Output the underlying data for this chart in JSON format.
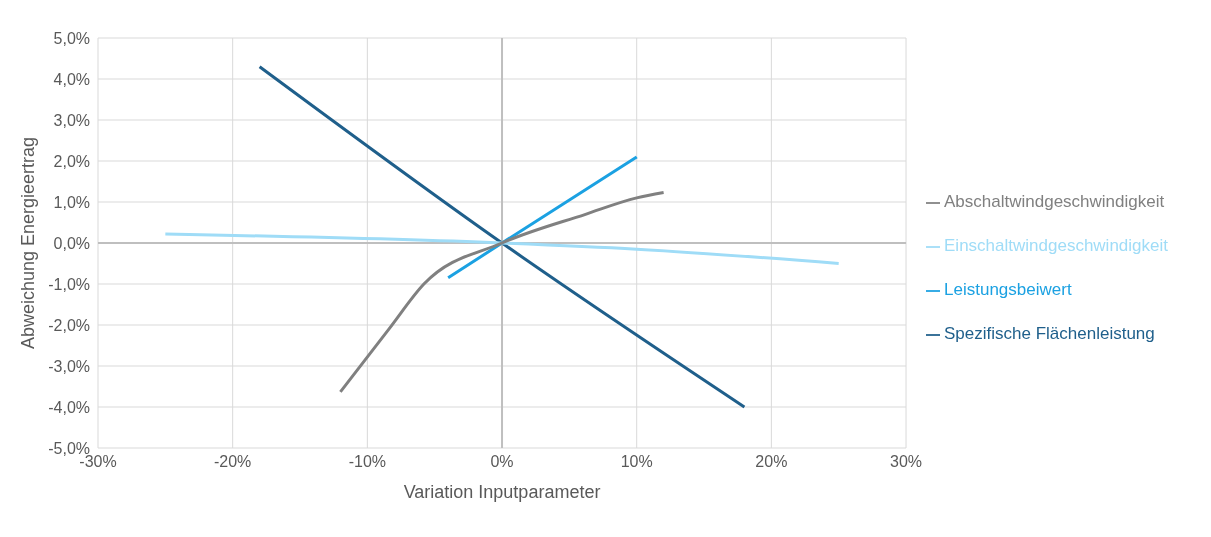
{
  "chart_data": {
    "type": "line",
    "xlabel": "Variation Inputparameter",
    "ylabel": "Abweichung Energieertrag",
    "xlim": [
      -0.3,
      0.3
    ],
    "xticks": [
      {
        "value": -0.3,
        "label": "-30%"
      },
      {
        "value": -0.2,
        "label": "-20%"
      },
      {
        "value": -0.1,
        "label": "-10%"
      },
      {
        "value": 0,
        "label": "0%"
      },
      {
        "value": 0.1,
        "label": "10%"
      },
      {
        "value": 0.2,
        "label": "20%"
      },
      {
        "value": 0.3,
        "label": "30%"
      }
    ],
    "ylim": [
      -0.05,
      0.05
    ],
    "yticks": [
      {
        "value": -0.05,
        "label": "-5,0%"
      },
      {
        "value": -0.04,
        "label": "-4,0%"
      },
      {
        "value": -0.03,
        "label": "-3,0%"
      },
      {
        "value": -0.02,
        "label": "-2,0%"
      },
      {
        "value": -0.01,
        "label": "-1,0%"
      },
      {
        "value": 0,
        "label": "0,0%"
      },
      {
        "value": 0.01,
        "label": "1,0%"
      },
      {
        "value": 0.02,
        "label": "2,0%"
      },
      {
        "value": 0.03,
        "label": "3,0%"
      },
      {
        "value": 0.04,
        "label": "4,0%"
      },
      {
        "value": 0.05,
        "label": "5,0%"
      }
    ],
    "grid": true,
    "legend": "right",
    "marker": "none",
    "series": [
      {
        "name": "Spezifische Flächenleistung",
        "color": "#1f5f8b",
        "x": [
          -0.18,
          0,
          0.18
        ],
        "values": [
          0.043,
          0,
          -0.04
        ]
      },
      {
        "name": "Leistungsbeiwert",
        "color": "#1ba1e2",
        "x": [
          -0.04,
          0,
          0.1
        ],
        "values": [
          -0.0085,
          0,
          0.021
        ]
      },
      {
        "name": "Einschaltwindgeschwindigkeit",
        "color": "#9fdcf7",
        "x": [
          -0.25,
          0,
          0.1,
          0.25
        ],
        "values": [
          0.0022,
          0,
          -0.0015,
          -0.005
        ]
      },
      {
        "name": "Abschaltwindgeschwindigkeit",
        "color": "#808080",
        "x": [
          -0.12,
          -0.084,
          -0.058,
          0,
          0.062,
          0.1,
          0.12
        ],
        "values": [
          -0.0363,
          -0.021,
          -0.01,
          0,
          0.007,
          0.011,
          0.0123
        ]
      }
    ]
  }
}
